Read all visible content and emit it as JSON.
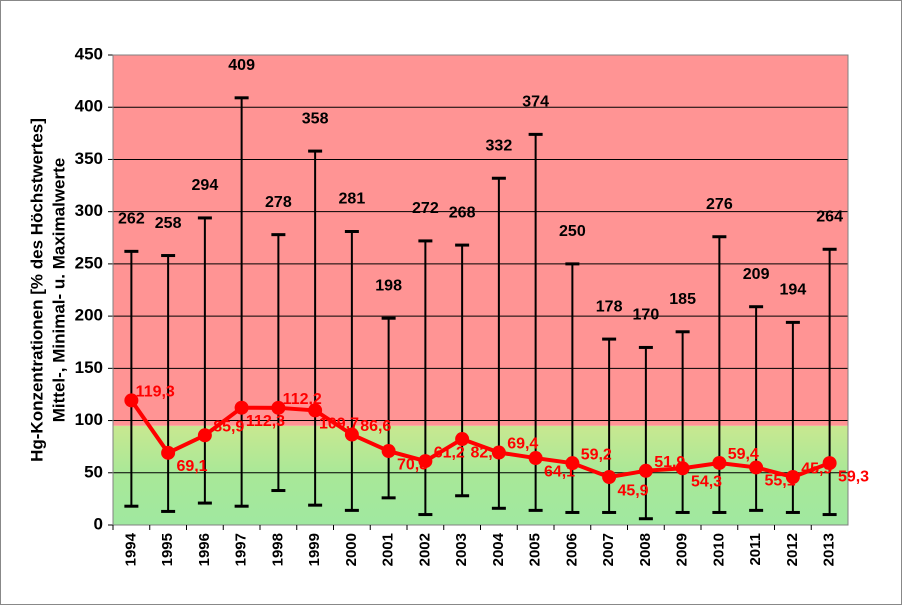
{
  "chart_data": {
    "type": "range-line",
    "y_axis_title": [
      "Hg-Konzentrationen [% des Höchstwertes]",
      "Mittel-, Minimal- u. Maximalwerte"
    ],
    "categories": [
      "1994",
      "1995",
      "1996",
      "1997",
      "1998",
      "1999",
      "2000",
      "2001",
      "2002",
      "2003",
      "2004",
      "2005",
      "2006",
      "2007",
      "2008",
      "2009",
      "2010",
      "2011",
      "2012",
      "2013"
    ],
    "mean": {
      "color": "#ff0000",
      "values": [
        119.3,
        69.1,
        85.9,
        112.3,
        112.2,
        109.7,
        86.6,
        70.8,
        61.2,
        82.3,
        69.4,
        64.1,
        59.2,
        45.9,
        51.9,
        54.3,
        59.4,
        55.1,
        45.9,
        59.3
      ],
      "value_labels": [
        "119,3",
        "69,1",
        "85,9",
        "112,3",
        "112,2",
        "109,7",
        "86,6",
        "70,8",
        "61,2",
        "82,3",
        "69,4",
        "64,1",
        "59,2",
        "45,9",
        "51,9",
        "54,3",
        "59,4",
        "55,1",
        "45,9",
        "59,3"
      ]
    },
    "max": {
      "color": "#000000",
      "values": [
        262,
        258,
        294,
        409,
        278,
        358,
        281,
        198,
        272,
        268,
        332,
        374,
        250,
        178,
        170,
        185,
        276,
        209,
        194,
        264
      ]
    },
    "min": {
      "color": "#000000",
      "values": [
        18,
        13,
        21,
        18,
        33,
        19,
        14,
        26,
        10,
        28,
        16,
        14,
        12,
        12,
        6,
        12,
        12,
        14,
        12,
        10
      ]
    },
    "background_bands": [
      {
        "from": 0,
        "to": 95,
        "color": "#a8e898"
      },
      {
        "from": 95,
        "to": 450,
        "color": "#ff9494"
      }
    ],
    "ylim": [
      0,
      450
    ],
    "yticks": [
      0,
      50,
      100,
      150,
      200,
      250,
      300,
      350,
      400,
      450
    ],
    "grid": true
  }
}
